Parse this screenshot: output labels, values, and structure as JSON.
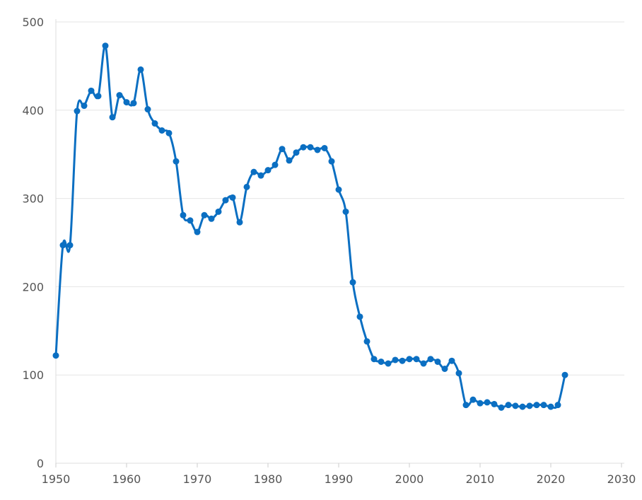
{
  "chart_data": {
    "type": "line",
    "title": "",
    "xlabel": "",
    "ylabel": "",
    "xlim": [
      1950,
      2030
    ],
    "ylim": [
      0,
      500
    ],
    "x_ticks": [
      "1950",
      "1960",
      "1970",
      "1980",
      "1990",
      "2000",
      "2010",
      "2020",
      "2030"
    ],
    "y_ticks": [
      "0",
      "100",
      "200",
      "300",
      "400",
      "500"
    ],
    "grid": "horizontal",
    "legend": "none",
    "line_color": "#0b6fc2",
    "series": [
      {
        "points": [
          [
            1950,
            122
          ],
          [
            1951,
            247
          ],
          [
            1952,
            247
          ],
          [
            1953,
            399
          ],
          [
            1954,
            405
          ],
          [
            1955,
            422
          ],
          [
            1956,
            416
          ],
          [
            1957,
            473
          ],
          [
            1958,
            392
          ],
          [
            1959,
            417
          ],
          [
            1960,
            409
          ],
          [
            1961,
            408
          ],
          [
            1962,
            446
          ],
          [
            1963,
            401
          ],
          [
            1964,
            385
          ],
          [
            1965,
            377
          ],
          [
            1966,
            374
          ],
          [
            1967,
            342
          ],
          [
            1968,
            281
          ],
          [
            1969,
            275
          ],
          [
            1970,
            262
          ],
          [
            1971,
            281
          ],
          [
            1972,
            277
          ],
          [
            1973,
            285
          ],
          [
            1974,
            298
          ],
          [
            1975,
            301
          ],
          [
            1976,
            273
          ],
          [
            1977,
            313
          ],
          [
            1978,
            330
          ],
          [
            1979,
            326
          ],
          [
            1980,
            332
          ],
          [
            1981,
            338
          ],
          [
            1982,
            356
          ],
          [
            1983,
            343
          ],
          [
            1984,
            352
          ],
          [
            1985,
            358
          ],
          [
            1986,
            358
          ],
          [
            1987,
            355
          ],
          [
            1988,
            357
          ],
          [
            1989,
            342
          ],
          [
            1990,
            310
          ],
          [
            1991,
            285
          ],
          [
            1992,
            205
          ],
          [
            1993,
            166
          ],
          [
            1994,
            138
          ],
          [
            1995,
            118
          ],
          [
            1996,
            115
          ],
          [
            1997,
            113
          ],
          [
            1998,
            117
          ],
          [
            1999,
            116
          ],
          [
            2000,
            118
          ],
          [
            2001,
            118
          ],
          [
            2002,
            113
          ],
          [
            2003,
            118
          ],
          [
            2004,
            115
          ],
          [
            2005,
            107
          ],
          [
            2006,
            116
          ],
          [
            2007,
            102
          ],
          [
            2008,
            66
          ],
          [
            2009,
            72
          ],
          [
            2010,
            68
          ],
          [
            2011,
            69
          ],
          [
            2012,
            67
          ],
          [
            2013,
            63
          ],
          [
            2014,
            66
          ],
          [
            2015,
            65
          ],
          [
            2016,
            64
          ],
          [
            2017,
            65
          ],
          [
            2018,
            66
          ],
          [
            2019,
            66
          ],
          [
            2020,
            64
          ],
          [
            2021,
            66
          ],
          [
            2022,
            100
          ]
        ]
      }
    ]
  }
}
